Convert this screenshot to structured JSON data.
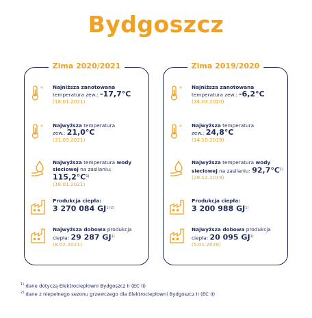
{
  "title": "Bydgoszcz",
  "panels": [
    {
      "title": "Zima 2020/2021",
      "items": [
        {
          "l1b": "Najniższa zanotowana",
          "l2": "temperatura zew.: ",
          "value": "-17,7°C",
          "date": "(18.01.2021)",
          "icon": "thermometer-snowflake-icon"
        },
        {
          "l1b": "Najwyższa",
          "l1": " temperatura",
          "l2": "zew.: ",
          "value": "21,0°C",
          "date": "(31.03.2021)",
          "icon": "thermometer-snowflake-icon"
        },
        {
          "l1b": "Najwyższa",
          "l1": " temperatura ",
          "l1b2": "wody",
          "l2b": "sieciowej",
          "l2": " na zasilaniu: ",
          "value": "115,2°C",
          "sup": "1)",
          "date": "(18.01.2021)",
          "icon": "hand-drop-icon"
        },
        {
          "l1b": "Produkcja ciepła:",
          "value": "3 270 084 GJ",
          "sup": "1) 2)",
          "icon": "factory-icon"
        },
        {
          "l1b": "Najwyższa dobowa",
          "l1": " produkcja",
          "l2": "ciepła: ",
          "value": "29 287 GJ",
          "sup": "1)",
          "date": "(8.02.2021)",
          "icon": "factory-icon"
        }
      ]
    },
    {
      "title": "Zima 2019/2020",
      "items": [
        {
          "l1b": "Najniższa zanotowana",
          "l2": "temperatura zew.: ",
          "value": "-6,2°C",
          "date": "(24.03.2020)",
          "icon": "thermometer-snowflake-icon"
        },
        {
          "l1b": "Najwyższa",
          "l1": " temperatura",
          "l2": "zew.: ",
          "value": "24,8°C",
          "date": "(14.10.2019)",
          "icon": "thermometer-snowflake-icon"
        },
        {
          "l1b": "Najwyższa",
          "l1": " temperatura ",
          "l1b2": "wody",
          "l2b": "sieciowej",
          "l2": " na zasilaniu: ",
          "value": "92,7°C",
          "sup": "1)",
          "date": "(29.12.2019)",
          "icon": "hand-drop-icon"
        },
        {
          "l1b": "Produkcja ciepła:",
          "value": "3 200 988 GJ",
          "sup": "1)",
          "icon": "factory-icon"
        },
        {
          "l1b": "Najwyższa dobowa",
          "l1": " produkcja",
          "l2": "ciepła: ",
          "value": "20 095 GJ",
          "sup": "1)",
          "date": "(5.01.2020)",
          "icon": "factory-icon"
        }
      ]
    }
  ],
  "footnotes": [
    {
      "mark": "1)",
      "text": "dane dotyczą Elektrociepłowni Bydgoszcz II (EC II)"
    },
    {
      "mark": "2)",
      "text": "dane z niepełnego sezonu grzewczego dla Elektrociepłowni Bydgoszcz II (EC II)"
    }
  ],
  "colors": {
    "accent": "#f0a023",
    "navy": "#1f2a5c"
  }
}
